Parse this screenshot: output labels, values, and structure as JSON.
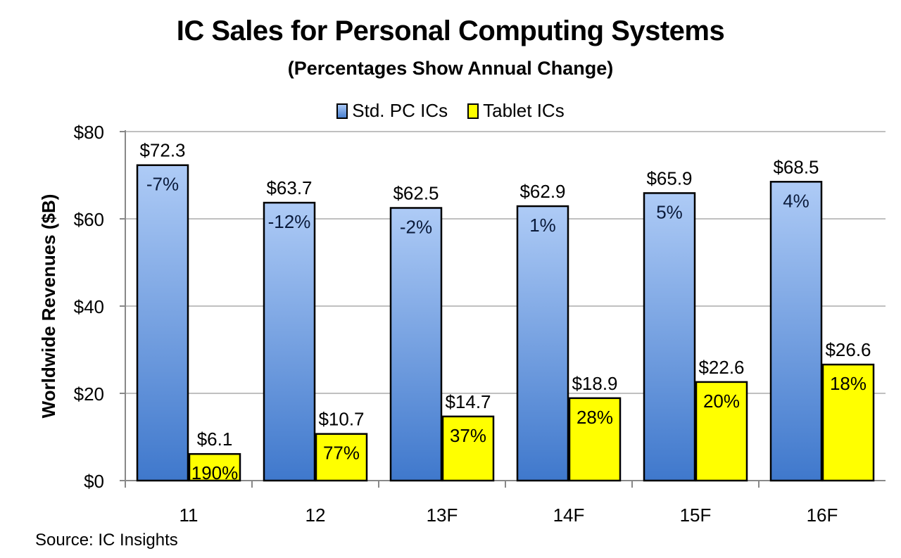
{
  "chart_data": {
    "type": "bar",
    "title": "IC Sales for Personal Computing Systems",
    "subtitle": "(Percentages Show Annual Change)",
    "xlabel": "",
    "ylabel": "Worldwide Revenues ($B)",
    "ylim": [
      0,
      80
    ],
    "yticks": [
      0,
      20,
      40,
      60,
      80
    ],
    "ytick_labels": [
      "$0",
      "$20",
      "$40",
      "$60",
      "$80"
    ],
    "grid": true,
    "legend_position": "top-center",
    "categories": [
      "11",
      "12",
      "13F",
      "14F",
      "15F",
      "16F"
    ],
    "series": [
      {
        "name": "Std. PC ICs",
        "color": "#5b8fd6",
        "values": [
          72.3,
          63.7,
          62.5,
          62.9,
          65.9,
          68.5
        ],
        "value_labels": [
          "$72.3",
          "$63.7",
          "$62.5",
          "$62.9",
          "$65.9",
          "$68.5"
        ],
        "change_labels": [
          "-7%",
          "-12%",
          "-2%",
          "1%",
          "5%",
          "4%"
        ]
      },
      {
        "name": "Tablet ICs",
        "color": "#ffff00",
        "values": [
          6.1,
          10.7,
          14.7,
          18.9,
          22.6,
          26.6
        ],
        "value_labels": [
          "$6.1",
          "$10.7",
          "$14.7",
          "$18.9",
          "$22.6",
          "$26.6"
        ],
        "change_labels": [
          "190%",
          "77%",
          "37%",
          "28%",
          "20%",
          "18%"
        ]
      }
    ],
    "source": "Source: IC Insights"
  }
}
